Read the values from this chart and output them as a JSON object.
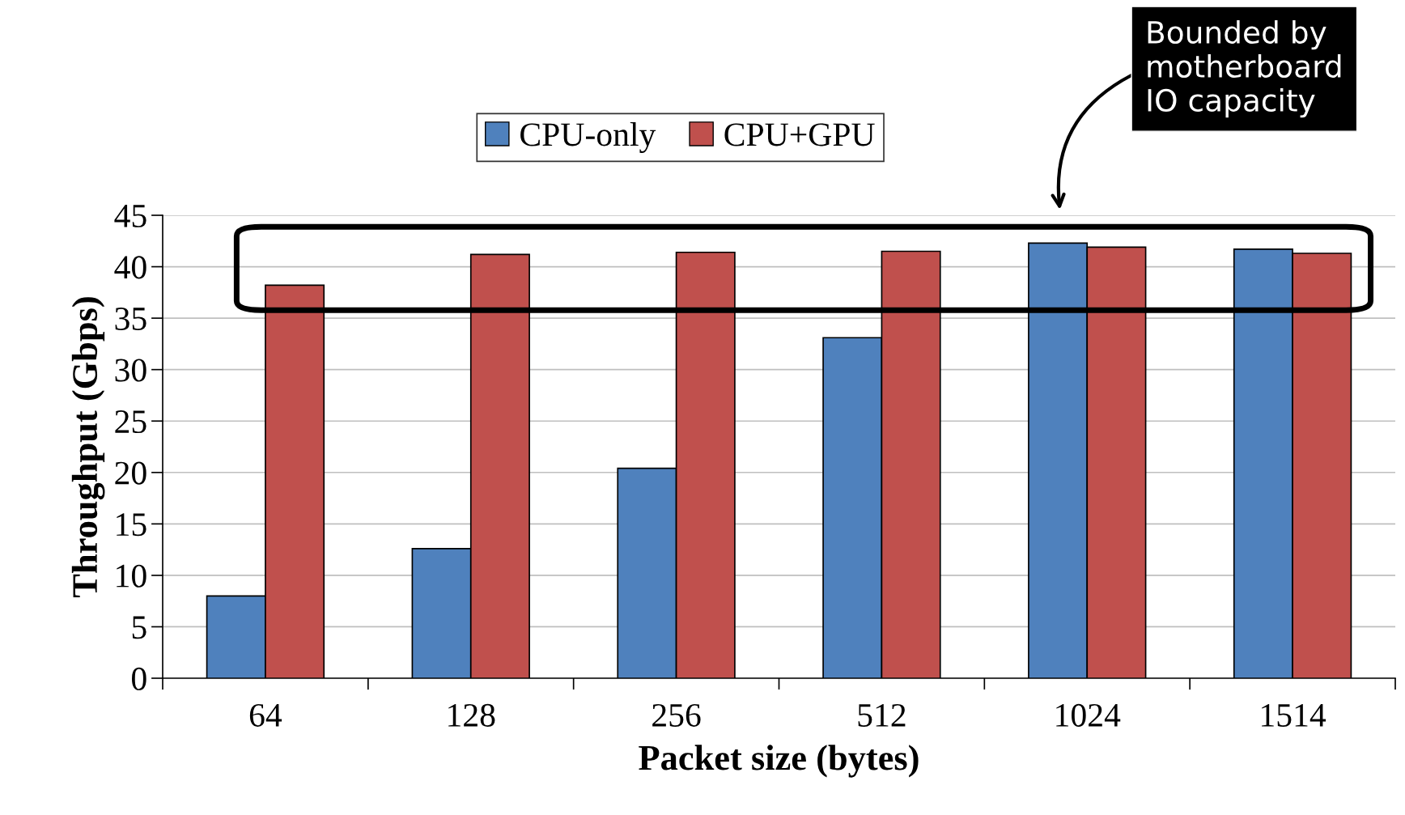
{
  "chart_data": {
    "type": "bar",
    "xlabel": "Packet size (bytes)",
    "ylabel": "Throughput (Gbps)",
    "categories": [
      "64",
      "128",
      "256",
      "512",
      "1024",
      "1514"
    ],
    "series": [
      {
        "name": "CPU-only",
        "color": "#4f81bd",
        "values": [
          8.0,
          12.6,
          20.4,
          33.1,
          42.3,
          41.7
        ]
      },
      {
        "name": "CPU+GPU",
        "color": "#c0504d",
        "values": [
          38.2,
          41.2,
          41.4,
          41.5,
          41.9,
          41.3
        ]
      }
    ],
    "ylim": [
      0,
      45
    ],
    "yticks": [
      0,
      5,
      10,
      15,
      20,
      25,
      30,
      35,
      40,
      45
    ],
    "grid": "y",
    "legend": "top",
    "annotations": [
      "Bounded by\nmotherboard\nIO capacity"
    ]
  }
}
